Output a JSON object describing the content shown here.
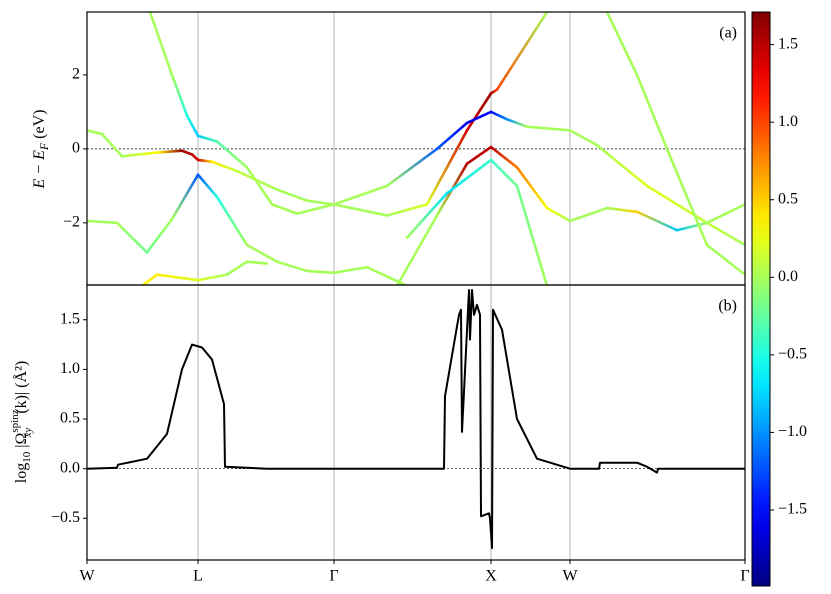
{
  "chart_data": [
    {
      "type": "band",
      "tag": "(a)",
      "xlim": [
        0,
        6.58
      ],
      "xticks": [
        0,
        1.11,
        2.47,
        4.04,
        4.83,
        6.58
      ],
      "grid": true,
      "zero_line": true,
      "ylim": [
        -3.68,
        3.7
      ],
      "yticks": [
        {
          "value": -2,
          "label": "−2"
        },
        0,
        2
      ],
      "ylabel": [
        "E − E",
        "F",
        " (eV)"
      ],
      "series": [
        {
          "x": [
            0.63,
            0.85,
            1.0,
            1.11,
            1.3,
            1.6,
            1.85,
            2.1,
            2.47
          ],
          "values": [
            3.7,
            2.0,
            0.9,
            0.35,
            0.2,
            -0.5,
            -1.5,
            -1.75,
            -1.5
          ],
          "color_values": [
            0,
            0,
            -0.5,
            -0.8,
            -0.3,
            0,
            0,
            0,
            0
          ]
        },
        {
          "x": [
            0,
            0.15,
            0.35,
            0.7,
            0.95,
            1.05,
            1.11,
            1.25,
            1.5,
            1.9,
            2.2,
            2.47
          ],
          "values": [
            0.5,
            0.4,
            -0.2,
            -0.1,
            -0.05,
            -0.15,
            -0.3,
            -0.35,
            -0.6,
            -1.1,
            -1.4,
            -1.5
          ],
          "color_values": [
            0,
            0,
            0,
            0.3,
            1.6,
            1.5,
            1.4,
            0.4,
            0.1,
            0,
            0,
            0
          ]
        },
        {
          "x": [
            0,
            0.3,
            0.6,
            0.85,
            1.11,
            1.3,
            1.6,
            1.9,
            2.2,
            2.47,
            2.8,
            3.2
          ],
          "values": [
            -1.95,
            -2.0,
            -2.8,
            -1.9,
            -0.7,
            -1.3,
            -2.6,
            -3.05,
            -3.3,
            -3.35,
            -3.2,
            -3.7
          ],
          "color_values": [
            0,
            0,
            -0.2,
            0,
            -1.2,
            -0.5,
            0,
            0,
            0,
            0,
            0,
            0
          ]
        },
        {
          "x": [
            0.55,
            0.7,
            1.11,
            1.4,
            1.6,
            1.8
          ],
          "values": [
            -3.7,
            -3.4,
            -3.55,
            -3.4,
            -3.05,
            -3.1
          ],
          "color_values": [
            0.3,
            0.4,
            0.2,
            0,
            0,
            0
          ]
        },
        {
          "x": [
            2.47,
            3.0,
            3.4,
            3.8,
            4.04,
            4.1,
            4.6
          ],
          "values": [
            -1.5,
            -1.8,
            -1.5,
            0.5,
            1.5,
            1.6,
            3.7
          ],
          "color_values": [
            0,
            0,
            0.2,
            1.4,
            1.6,
            1.0,
            0
          ]
        },
        {
          "x": [
            2.47,
            3.0,
            3.5,
            3.8,
            4.04,
            4.2,
            4.4,
            4.83,
            5.1,
            5.6,
            6.2,
            6.58
          ],
          "values": [
            -1.5,
            -1.0,
            0,
            0.7,
            1.0,
            0.8,
            0.6,
            0.5,
            0.1,
            -1.0,
            -2.0,
            -2.6
          ],
          "color_values": [
            0,
            0,
            -1.2,
            -1.6,
            -1.5,
            -1.0,
            0,
            0,
            0,
            0.2,
            0.1,
            0
          ]
        },
        {
          "x": [
            3.1,
            3.5,
            3.8,
            4.04,
            4.3,
            4.6,
            4.83,
            5.2,
            5.5,
            5.9,
            6.2,
            6.58
          ],
          "values": [
            -3.7,
            -1.8,
            -0.4,
            0.05,
            -0.5,
            -1.6,
            -1.95,
            -1.6,
            -1.7,
            -2.2,
            -2.0,
            -1.5
          ],
          "color_values": [
            0,
            0,
            1.5,
            1.5,
            0.8,
            0.3,
            0,
            0,
            0.5,
            -0.8,
            0,
            0
          ]
        },
        {
          "x": [
            3.2,
            3.6,
            4.04,
            4.3,
            4.6
          ],
          "values": [
            -2.4,
            -1.2,
            -0.3,
            -1.0,
            -3.7
          ],
          "color_values": [
            0,
            -0.7,
            -0.4,
            -0.2,
            0
          ]
        },
        {
          "x": [
            5.2,
            5.5,
            5.8,
            6.2,
            6.58
          ],
          "values": [
            3.7,
            2.0,
            0.0,
            -2.6,
            -3.4
          ],
          "color_values": [
            0,
            0,
            0,
            0,
            0
          ]
        }
      ],
      "colorbar": {
        "clim": [
          -1.99,
          1.71
        ],
        "ticks": [
          {
            "value": -1.5,
            "label": "−1.5"
          },
          {
            "value": -1.0,
            "label": "−1.0"
          },
          {
            "value": -0.5,
            "label": "−0.5"
          },
          {
            "value": 0,
            "label": "0.0"
          },
          {
            "value": 0.5,
            "label": "0.5"
          },
          {
            "value": 1.0,
            "label": "1.0"
          },
          {
            "value": 1.5,
            "label": "1.5"
          }
        ]
      }
    },
    {
      "type": "line",
      "tag": "(b)",
      "color": "#000000",
      "xlim": [
        0,
        6.58
      ],
      "xticks": [
        {
          "value": 0,
          "label": "W"
        },
        {
          "value": 1.11,
          "label": "L"
        },
        {
          "value": 2.47,
          "label": "Γ"
        },
        {
          "value": 4.04,
          "label": "X"
        },
        {
          "value": 4.83,
          "label": "W"
        },
        {
          "value": 6.58,
          "label": "Γ"
        }
      ],
      "grid": true,
      "zero_line": true,
      "ylim": [
        -0.92,
        1.85
      ],
      "yticks": [
        {
          "value": -0.5,
          "label": "−0.5"
        },
        {
          "value": 0,
          "label": "0.0"
        },
        {
          "value": 0.5,
          "label": "0.5"
        },
        {
          "value": 1.0,
          "label": "1.0"
        },
        {
          "value": 1.5,
          "label": "1.5"
        }
      ],
      "ylabel": [
        "log",
        "10",
        " |Ω",
        "spinz",
        "xy",
        "(k)| (Å²)"
      ],
      "x": [
        0,
        0.3,
        0.31,
        0.6,
        0.8,
        0.95,
        1.05,
        1.15,
        1.25,
        1.37,
        1.38,
        1.8,
        3.57,
        3.58,
        3.72,
        3.74,
        3.75,
        3.82,
        3.83,
        3.85,
        3.87,
        3.9,
        3.93,
        3.94,
        4.02,
        4.03,
        4.05,
        4.06,
        4.15,
        4.3,
        4.5,
        4.83,
        5.12,
        5.13,
        5.5,
        5.6,
        5.7,
        5.71,
        6.58
      ],
      "values": [
        0,
        0.01,
        0.04,
        0.1,
        0.35,
        1.0,
        1.25,
        1.22,
        1.1,
        0.65,
        0.02,
        0.0,
        0.0,
        0.73,
        1.55,
        1.6,
        0.37,
        1.8,
        1.3,
        1.8,
        1.55,
        1.65,
        1.55,
        -0.48,
        -0.45,
        -0.5,
        -0.8,
        1.6,
        1.4,
        0.5,
        0.1,
        0.0,
        0.0,
        0.06,
        0.06,
        0.02,
        -0.04,
        0.0,
        0.0
      ]
    }
  ]
}
